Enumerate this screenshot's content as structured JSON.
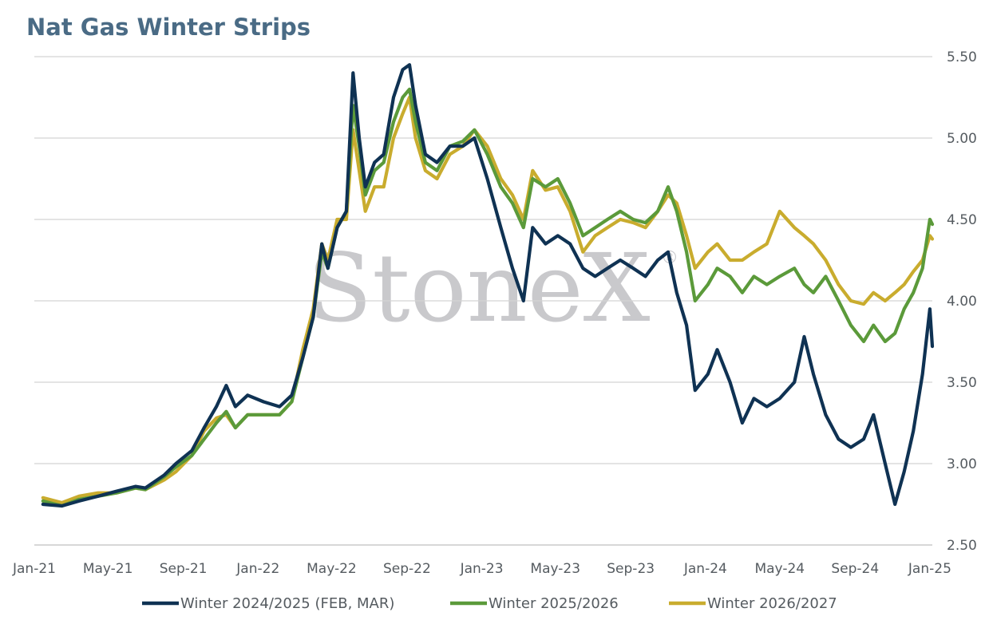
{
  "chart_data": {
    "type": "line",
    "title": "Nat Gas Winter Strips",
    "watermark": "StoneX",
    "watermark_mark": "®",
    "xlabel": "",
    "ylabel": "",
    "x_range": [
      "2021-01-01",
      "2025-01-05"
    ],
    "ylim": [
      2.5,
      5.5
    ],
    "y_ticks": [
      "2.50",
      "3.00",
      "3.50",
      "4.00",
      "4.50",
      "5.00",
      "5.50"
    ],
    "y_axis_side": "right",
    "x_ticks": [
      {
        "date": "2021-01-01",
        "label": "Jan-21"
      },
      {
        "date": "2021-05-01",
        "label": "May-21"
      },
      {
        "date": "2021-09-01",
        "label": "Sep-21"
      },
      {
        "date": "2022-01-01",
        "label": "Jan-22"
      },
      {
        "date": "2022-05-01",
        "label": "May-22"
      },
      {
        "date": "2022-09-01",
        "label": "Sep-22"
      },
      {
        "date": "2023-01-01",
        "label": "Jan-23"
      },
      {
        "date": "2023-05-01",
        "label": "May-23"
      },
      {
        "date": "2023-09-01",
        "label": "Sep-23"
      },
      {
        "date": "2024-01-01",
        "label": "Jan-24"
      },
      {
        "date": "2024-05-01",
        "label": "May-24"
      },
      {
        "date": "2024-09-01",
        "label": "Sep-24"
      },
      {
        "date": "2025-01-01",
        "label": "Jan-25"
      }
    ],
    "grid": "horizontal",
    "legend_position": "bottom",
    "series": [
      {
        "name": "Winter 2024/2025 (FEB, MAR)",
        "color": "#0f3253",
        "points": [
          [
            "2021-01-15",
            2.75
          ],
          [
            "2021-02-15",
            2.74
          ],
          [
            "2021-03-15",
            2.77
          ],
          [
            "2021-04-15",
            2.8
          ],
          [
            "2021-05-15",
            2.83
          ],
          [
            "2021-06-15",
            2.86
          ],
          [
            "2021-07-01",
            2.85
          ],
          [
            "2021-08-01",
            2.93
          ],
          [
            "2021-08-20",
            3.0
          ],
          [
            "2021-09-15",
            3.08
          ],
          [
            "2021-10-05",
            3.22
          ],
          [
            "2021-10-25",
            3.35
          ],
          [
            "2021-11-10",
            3.48
          ],
          [
            "2021-11-25",
            3.35
          ],
          [
            "2021-12-15",
            3.42
          ],
          [
            "2022-01-10",
            3.38
          ],
          [
            "2022-02-05",
            3.35
          ],
          [
            "2022-02-25",
            3.42
          ],
          [
            "2022-03-15",
            3.65
          ],
          [
            "2022-04-01",
            3.9
          ],
          [
            "2022-04-15",
            4.35
          ],
          [
            "2022-04-25",
            4.2
          ],
          [
            "2022-05-10",
            4.45
          ],
          [
            "2022-05-25",
            4.55
          ],
          [
            "2022-06-05",
            5.4
          ],
          [
            "2022-06-15",
            5.0
          ],
          [
            "2022-06-25",
            4.7
          ],
          [
            "2022-07-10",
            4.85
          ],
          [
            "2022-07-25",
            4.9
          ],
          [
            "2022-08-10",
            5.25
          ],
          [
            "2022-08-25",
            5.42
          ],
          [
            "2022-09-05",
            5.45
          ],
          [
            "2022-09-15",
            5.2
          ],
          [
            "2022-10-01",
            4.9
          ],
          [
            "2022-10-20",
            4.85
          ],
          [
            "2022-11-10",
            4.95
          ],
          [
            "2022-12-01",
            4.95
          ],
          [
            "2022-12-20",
            5.0
          ],
          [
            "2023-01-10",
            4.75
          ],
          [
            "2023-02-01",
            4.45
          ],
          [
            "2023-02-20",
            4.2
          ],
          [
            "2023-03-10",
            4.0
          ],
          [
            "2023-03-25",
            4.45
          ],
          [
            "2023-04-15",
            4.35
          ],
          [
            "2023-05-05",
            4.4
          ],
          [
            "2023-05-25",
            4.35
          ],
          [
            "2023-06-15",
            4.2
          ],
          [
            "2023-07-05",
            4.15
          ],
          [
            "2023-07-25",
            4.2
          ],
          [
            "2023-08-15",
            4.25
          ],
          [
            "2023-09-05",
            4.2
          ],
          [
            "2023-09-25",
            4.15
          ],
          [
            "2023-10-15",
            4.25
          ],
          [
            "2023-11-01",
            4.3
          ],
          [
            "2023-11-15",
            4.05
          ],
          [
            "2023-12-01",
            3.85
          ],
          [
            "2023-12-15",
            3.45
          ],
          [
            "2024-01-05",
            3.55
          ],
          [
            "2024-01-20",
            3.7
          ],
          [
            "2024-02-10",
            3.5
          ],
          [
            "2024-03-01",
            3.25
          ],
          [
            "2024-03-20",
            3.4
          ],
          [
            "2024-04-10",
            3.35
          ],
          [
            "2024-05-01",
            3.4
          ],
          [
            "2024-05-25",
            3.5
          ],
          [
            "2024-06-10",
            3.78
          ],
          [
            "2024-06-25",
            3.55
          ],
          [
            "2024-07-15",
            3.3
          ],
          [
            "2024-08-05",
            3.15
          ],
          [
            "2024-08-25",
            3.1
          ],
          [
            "2024-09-15",
            3.15
          ],
          [
            "2024-10-01",
            3.3
          ],
          [
            "2024-10-20",
            3.0
          ],
          [
            "2024-11-05",
            2.75
          ],
          [
            "2024-11-20",
            2.95
          ],
          [
            "2024-12-05",
            3.2
          ],
          [
            "2024-12-20",
            3.55
          ],
          [
            "2025-01-01",
            3.95
          ],
          [
            "2025-01-05",
            3.72
          ]
        ]
      },
      {
        "name": "Winter 2025/2026",
        "color": "#5b9a3a",
        "points": [
          [
            "2021-01-15",
            2.77
          ],
          [
            "2021-02-15",
            2.74
          ],
          [
            "2021-03-15",
            2.78
          ],
          [
            "2021-04-15",
            2.8
          ],
          [
            "2021-05-15",
            2.82
          ],
          [
            "2021-06-15",
            2.85
          ],
          [
            "2021-07-01",
            2.84
          ],
          [
            "2021-08-01",
            2.92
          ],
          [
            "2021-08-20",
            2.98
          ],
          [
            "2021-09-15",
            3.05
          ],
          [
            "2021-10-05",
            3.15
          ],
          [
            "2021-10-25",
            3.25
          ],
          [
            "2021-11-10",
            3.32
          ],
          [
            "2021-11-25",
            3.22
          ],
          [
            "2021-12-15",
            3.3
          ],
          [
            "2022-01-10",
            3.3
          ],
          [
            "2022-02-05",
            3.3
          ],
          [
            "2022-02-25",
            3.38
          ],
          [
            "2022-03-15",
            3.65
          ],
          [
            "2022-04-01",
            3.9
          ],
          [
            "2022-04-15",
            4.3
          ],
          [
            "2022-04-25",
            4.2
          ],
          [
            "2022-05-10",
            4.45
          ],
          [
            "2022-05-25",
            4.55
          ],
          [
            "2022-06-05",
            5.2
          ],
          [
            "2022-06-15",
            4.95
          ],
          [
            "2022-06-25",
            4.65
          ],
          [
            "2022-07-10",
            4.8
          ],
          [
            "2022-07-25",
            4.85
          ],
          [
            "2022-08-10",
            5.1
          ],
          [
            "2022-08-25",
            5.25
          ],
          [
            "2022-09-05",
            5.3
          ],
          [
            "2022-09-15",
            5.1
          ],
          [
            "2022-10-01",
            4.85
          ],
          [
            "2022-10-20",
            4.8
          ],
          [
            "2022-11-10",
            4.95
          ],
          [
            "2022-12-01",
            4.98
          ],
          [
            "2022-12-20",
            5.05
          ],
          [
            "2023-01-10",
            4.9
          ],
          [
            "2023-02-01",
            4.7
          ],
          [
            "2023-02-20",
            4.6
          ],
          [
            "2023-03-10",
            4.45
          ],
          [
            "2023-03-25",
            4.75
          ],
          [
            "2023-04-15",
            4.7
          ],
          [
            "2023-05-05",
            4.75
          ],
          [
            "2023-05-25",
            4.6
          ],
          [
            "2023-06-15",
            4.4
          ],
          [
            "2023-07-05",
            4.45
          ],
          [
            "2023-07-25",
            4.5
          ],
          [
            "2023-08-15",
            4.55
          ],
          [
            "2023-09-05",
            4.5
          ],
          [
            "2023-09-25",
            4.48
          ],
          [
            "2023-10-15",
            4.55
          ],
          [
            "2023-11-01",
            4.7
          ],
          [
            "2023-11-15",
            4.55
          ],
          [
            "2023-12-01",
            4.3
          ],
          [
            "2023-12-15",
            4.0
          ],
          [
            "2024-01-05",
            4.1
          ],
          [
            "2024-01-20",
            4.2
          ],
          [
            "2024-02-10",
            4.15
          ],
          [
            "2024-03-01",
            4.05
          ],
          [
            "2024-03-20",
            4.15
          ],
          [
            "2024-04-10",
            4.1
          ],
          [
            "2024-05-01",
            4.15
          ],
          [
            "2024-05-25",
            4.2
          ],
          [
            "2024-06-10",
            4.1
          ],
          [
            "2024-06-25",
            4.05
          ],
          [
            "2024-07-15",
            4.15
          ],
          [
            "2024-08-05",
            4.0
          ],
          [
            "2024-08-25",
            3.85
          ],
          [
            "2024-09-15",
            3.75
          ],
          [
            "2024-10-01",
            3.85
          ],
          [
            "2024-10-20",
            3.75
          ],
          [
            "2024-11-05",
            3.8
          ],
          [
            "2024-11-20",
            3.95
          ],
          [
            "2024-12-05",
            4.05
          ],
          [
            "2024-12-20",
            4.2
          ],
          [
            "2025-01-01",
            4.5
          ],
          [
            "2025-01-05",
            4.47
          ]
        ]
      },
      {
        "name": "Winter 2026/2027",
        "color": "#c9ac2e",
        "points": [
          [
            "2021-01-15",
            2.79
          ],
          [
            "2021-02-15",
            2.76
          ],
          [
            "2021-03-15",
            2.8
          ],
          [
            "2021-04-15",
            2.82
          ],
          [
            "2021-05-15",
            2.82
          ],
          [
            "2021-06-15",
            2.85
          ],
          [
            "2021-07-01",
            2.84
          ],
          [
            "2021-08-01",
            2.9
          ],
          [
            "2021-08-20",
            2.95
          ],
          [
            "2021-09-15",
            3.05
          ],
          [
            "2021-10-05",
            3.2
          ],
          [
            "2021-10-25",
            3.28
          ],
          [
            "2021-11-10",
            3.3
          ],
          [
            "2021-11-25",
            3.22
          ],
          [
            "2021-12-15",
            3.3
          ],
          [
            "2022-01-10",
            3.3
          ],
          [
            "2022-02-05",
            3.3
          ],
          [
            "2022-02-25",
            3.38
          ],
          [
            "2022-03-15",
            3.7
          ],
          [
            "2022-04-01",
            3.95
          ],
          [
            "2022-04-15",
            4.35
          ],
          [
            "2022-04-25",
            4.25
          ],
          [
            "2022-05-10",
            4.5
          ],
          [
            "2022-05-25",
            4.5
          ],
          [
            "2022-06-05",
            5.05
          ],
          [
            "2022-06-15",
            4.8
          ],
          [
            "2022-06-25",
            4.55
          ],
          [
            "2022-07-10",
            4.7
          ],
          [
            "2022-07-25",
            4.7
          ],
          [
            "2022-08-10",
            5.0
          ],
          [
            "2022-08-25",
            5.15
          ],
          [
            "2022-09-05",
            5.25
          ],
          [
            "2022-09-15",
            5.0
          ],
          [
            "2022-10-01",
            4.8
          ],
          [
            "2022-10-20",
            4.75
          ],
          [
            "2022-11-10",
            4.9
          ],
          [
            "2022-12-01",
            4.95
          ],
          [
            "2022-12-20",
            5.05
          ],
          [
            "2023-01-10",
            4.95
          ],
          [
            "2023-02-01",
            4.75
          ],
          [
            "2023-02-20",
            4.65
          ],
          [
            "2023-03-10",
            4.5
          ],
          [
            "2023-03-25",
            4.8
          ],
          [
            "2023-04-15",
            4.68
          ],
          [
            "2023-05-05",
            4.7
          ],
          [
            "2023-05-25",
            4.55
          ],
          [
            "2023-06-15",
            4.3
          ],
          [
            "2023-07-05",
            4.4
          ],
          [
            "2023-07-25",
            4.45
          ],
          [
            "2023-08-15",
            4.5
          ],
          [
            "2023-09-05",
            4.48
          ],
          [
            "2023-09-25",
            4.45
          ],
          [
            "2023-10-15",
            4.55
          ],
          [
            "2023-11-01",
            4.65
          ],
          [
            "2023-11-15",
            4.6
          ],
          [
            "2023-12-01",
            4.4
          ],
          [
            "2023-12-15",
            4.2
          ],
          [
            "2024-01-05",
            4.3
          ],
          [
            "2024-01-20",
            4.35
          ],
          [
            "2024-02-10",
            4.25
          ],
          [
            "2024-03-01",
            4.25
          ],
          [
            "2024-03-20",
            4.3
          ],
          [
            "2024-04-10",
            4.35
          ],
          [
            "2024-05-01",
            4.55
          ],
          [
            "2024-05-25",
            4.45
          ],
          [
            "2024-06-10",
            4.4
          ],
          [
            "2024-06-25",
            4.35
          ],
          [
            "2024-07-15",
            4.25
          ],
          [
            "2024-08-05",
            4.1
          ],
          [
            "2024-08-25",
            4.0
          ],
          [
            "2024-09-15",
            3.98
          ],
          [
            "2024-10-01",
            4.05
          ],
          [
            "2024-10-20",
            4.0
          ],
          [
            "2024-11-05",
            4.05
          ],
          [
            "2024-11-20",
            4.1
          ],
          [
            "2024-12-05",
            4.18
          ],
          [
            "2024-12-20",
            4.25
          ],
          [
            "2025-01-01",
            4.4
          ],
          [
            "2025-01-05",
            4.38
          ]
        ]
      }
    ]
  },
  "colors": {
    "title": "#4a6b85",
    "grid": "#d4d4d4",
    "axis": "#bfbfbf"
  }
}
